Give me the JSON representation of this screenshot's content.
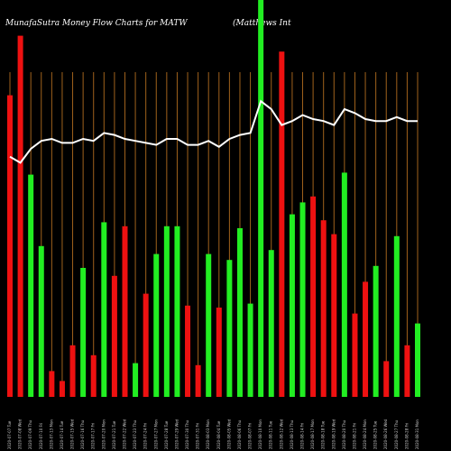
{
  "header": {
    "title": "MunafaSutra  Money Flow  Charts for MATW",
    "subtitle": "(Matthews  Int"
  },
  "chart_data": {
    "type": "bar",
    "title": "MunafaSutra  Money Flow  Charts for MATW",
    "subtitle": "(Matthews  Int",
    "ylim": [
      0,
      100
    ],
    "grid": "vertical",
    "colors": {
      "up": "#22ee22",
      "down": "#ee1111",
      "line": "#ffffff",
      "grid": "#a0621c",
      "background": "#000000"
    },
    "categories": [
      "2020-07-07 Tue",
      "2020-07-08 Wed",
      "2020-07-09 Thu",
      "2020-07-10 Fri",
      "2020-07-13 Mon",
      "2020-07-14 Tue",
      "2020-07-15 Wed",
      "2020-07-16 Thu",
      "2020-07-17 Fri",
      "2020-07-20 Mon",
      "2020-07-21 Tue",
      "2020-07-22 Wed",
      "2020-07-23 Thu",
      "2020-07-24 Fri",
      "2020-07-27 Mon",
      "2020-07-28 Tue",
      "2020-07-29 Wed",
      "2020-07-30 Thu",
      "2020-07-31 Fri",
      "2020-08-03 Mon",
      "2020-08-04 Tue",
      "2020-08-05 Wed",
      "2020-08-06 Thu",
      "2020-08-07 Fri",
      "2020-08-10 Mon",
      "2020-08-11 Tue",
      "2020-08-12 Wed",
      "2020-08-13 Thu",
      "2020-08-14 Fri",
      "2020-08-17 Mon",
      "2020-08-18 Tue",
      "2020-08-19 Wed",
      "2020-08-20 Thu",
      "2020-08-21 Fri",
      "2020-08-24 Mon",
      "2020-08-25 Tue",
      "2020-08-26 Wed",
      "2020-08-27 Thu",
      "2020-08-28 Fri",
      "2020-08-31 Mon"
    ],
    "bars": [
      {
        "value": 76,
        "color": "red"
      },
      {
        "value": 91,
        "color": "red"
      },
      {
        "value": 56,
        "color": "green"
      },
      {
        "value": 38,
        "color": "green"
      },
      {
        "value": 6.5,
        "color": "red"
      },
      {
        "value": 4,
        "color": "red"
      },
      {
        "value": 13,
        "color": "red"
      },
      {
        "value": 32.5,
        "color": "green"
      },
      {
        "value": 10.5,
        "color": "red"
      },
      {
        "value": 44,
        "color": "green"
      },
      {
        "value": 30.5,
        "color": "red"
      },
      {
        "value": 43,
        "color": "red"
      },
      {
        "value": 8.5,
        "color": "green"
      },
      {
        "value": 26,
        "color": "red"
      },
      {
        "value": 36,
        "color": "green"
      },
      {
        "value": 43,
        "color": "green"
      },
      {
        "value": 43,
        "color": "green"
      },
      {
        "value": 23,
        "color": "red"
      },
      {
        "value": 8,
        "color": "red"
      },
      {
        "value": 36,
        "color": "green"
      },
      {
        "value": 22.5,
        "color": "red"
      },
      {
        "value": 34.5,
        "color": "green"
      },
      {
        "value": 42.5,
        "color": "green"
      },
      {
        "value": 23.5,
        "color": "green"
      },
      {
        "value": 100,
        "color": "green"
      },
      {
        "value": 37,
        "color": "green"
      },
      {
        "value": 87,
        "color": "red"
      },
      {
        "value": 46,
        "color": "green"
      },
      {
        "value": 49,
        "color": "green"
      },
      {
        "value": 50.5,
        "color": "red"
      },
      {
        "value": 44.5,
        "color": "red"
      },
      {
        "value": 41,
        "color": "red"
      },
      {
        "value": 56.5,
        "color": "green"
      },
      {
        "value": 21,
        "color": "red"
      },
      {
        "value": 29,
        "color": "red"
      },
      {
        "value": 33,
        "color": "green"
      },
      {
        "value": 9,
        "color": "red"
      },
      {
        "value": 40.5,
        "color": "green"
      },
      {
        "value": 13,
        "color": "red"
      },
      {
        "value": 18.5,
        "color": "green"
      }
    ],
    "line": {
      "values": [
        60.5,
        59,
        62.5,
        64.5,
        65,
        64,
        64,
        65,
        64.5,
        66.5,
        66,
        65,
        64.5,
        64,
        63.5,
        65,
        65,
        63.5,
        63.5,
        64.5,
        63,
        65,
        66,
        66.5,
        74.5,
        72.5,
        68.5,
        69.5,
        71,
        70,
        69.5,
        68.5,
        72.5,
        71.5,
        70,
        69.5,
        69.5,
        70.5,
        69.5,
        69.5
      ]
    }
  }
}
